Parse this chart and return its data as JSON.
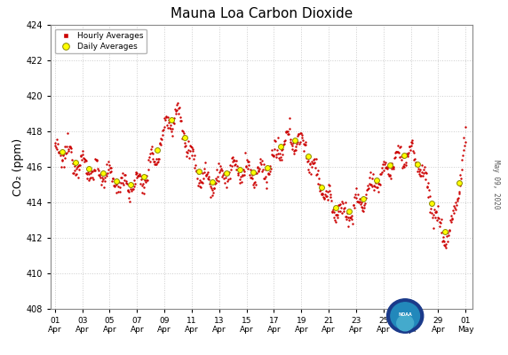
{
  "title": "Mauna Loa Carbon Dioxide",
  "ylabel": "CO₂ (ppm)",
  "background_color": "#ffffff",
  "plot_bg_color": "#ffffff",
  "grid_color": "#cccccc",
  "hourly_color": "#cc0000",
  "daily_color": "#ffff00",
  "daily_edge_color": "#888800",
  "ylim": [
    408,
    424
  ],
  "yticks": [
    408,
    410,
    412,
    414,
    416,
    418,
    420,
    422,
    424
  ],
  "xtick_positions": [
    0,
    2,
    4,
    6,
    8,
    10,
    12,
    14,
    16,
    18,
    20,
    22,
    24,
    26,
    28,
    30
  ],
  "xtick_labels": [
    "01\nApr",
    "03\nApr",
    "05\nApr",
    "07\nApr",
    "09\nApr",
    "11\nApr",
    "13\nApr",
    "15\nApr",
    "17\nApr",
    "19\nApr",
    "21\nApr",
    "23\nApr",
    "25\nApr",
    "27\nApr",
    "29\nApr",
    "01\nMay"
  ],
  "date_label": "May 09, 2020",
  "xlim": [
    -0.3,
    30.5
  ],
  "hourly_markersize": 3,
  "daily_markersize": 18
}
